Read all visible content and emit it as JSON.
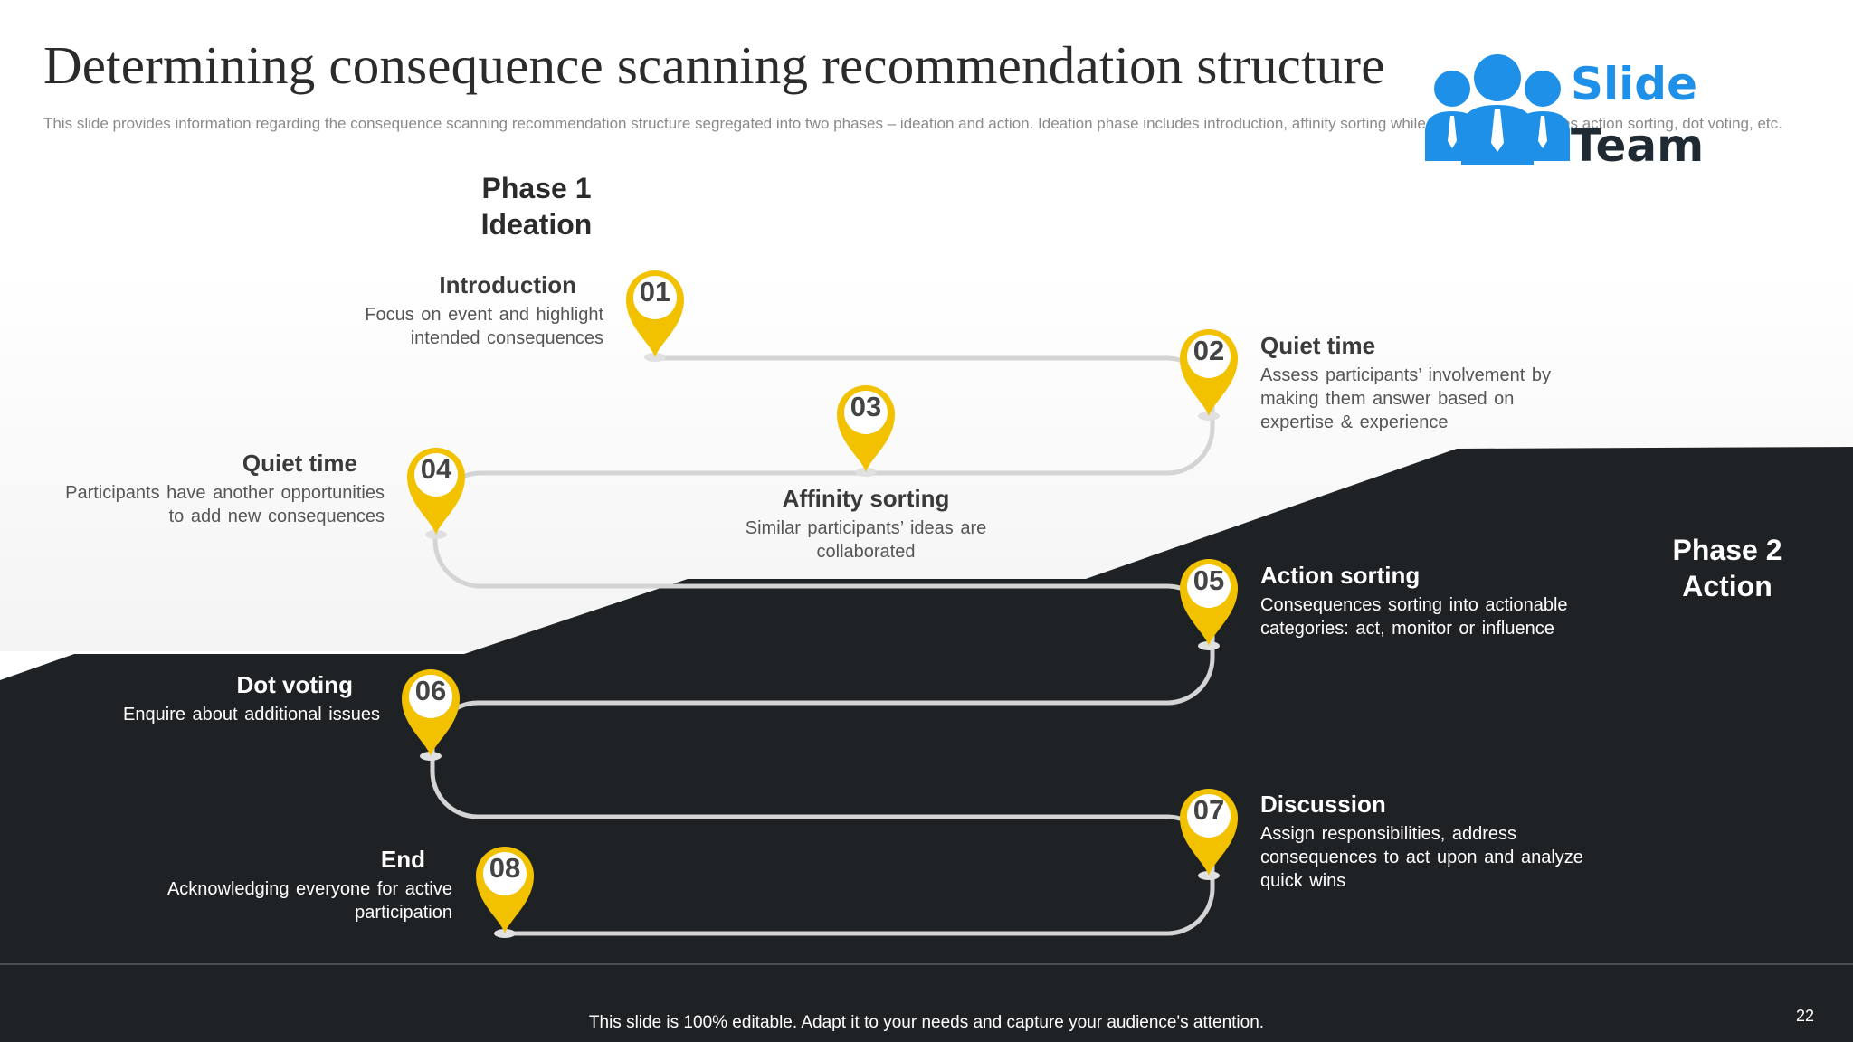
{
  "header": {
    "title": "Determining consequence scanning recommendation structure",
    "subtitle": "This slide provides information regarding the consequence scanning recommendation structure segregated into two phases – ideation and action. Ideation phase includes introduction, affinity sorting while action phase includes action sorting, dot voting, etc."
  },
  "logo": {
    "line1": "Slide",
    "line2": "Team",
    "icon": "team-people-icon",
    "color": "#1e90e8"
  },
  "phases": {
    "phase1": {
      "line1": "Phase 1",
      "line2": "Ideation"
    },
    "phase2": {
      "line1": "Phase 2",
      "line2": "Action"
    }
  },
  "steps": [
    {
      "number": "01",
      "title": "Introduction",
      "description": "Focus on event  and highlight intended consequences"
    },
    {
      "number": "02",
      "title": "Quiet time",
      "description": "Assess participants’ involvement by making them answer  based on expertise & experience"
    },
    {
      "number": "03",
      "title": "Affinity  sorting",
      "description": "Similar participants’ ideas are collaborated"
    },
    {
      "number": "04",
      "title": "Quiet time",
      "description": "Participants have  another opportunities to add new consequences"
    },
    {
      "number": "05",
      "title": "Action sorting",
      "description": "Consequences  sorting into actionable categories: act, monitor or influence"
    },
    {
      "number": "06",
      "title": "Dot voting",
      "description": "Enquire  about  additional  issues"
    },
    {
      "number": "07",
      "title": "Discussion",
      "description": "Assign responsibilities,  address consequences to act upon and analyze quick wins"
    },
    {
      "number": "08",
      "title": "End",
      "description": "Acknowledging  everyone  for active participation"
    }
  ],
  "footer": {
    "text": "This slide is 100% editable. Adapt it to your needs and capture your audience's attention.",
    "page": "22"
  },
  "colors": {
    "dark": "#1f2225",
    "accent": "#f2c200",
    "path": "#d4d4d4"
  }
}
